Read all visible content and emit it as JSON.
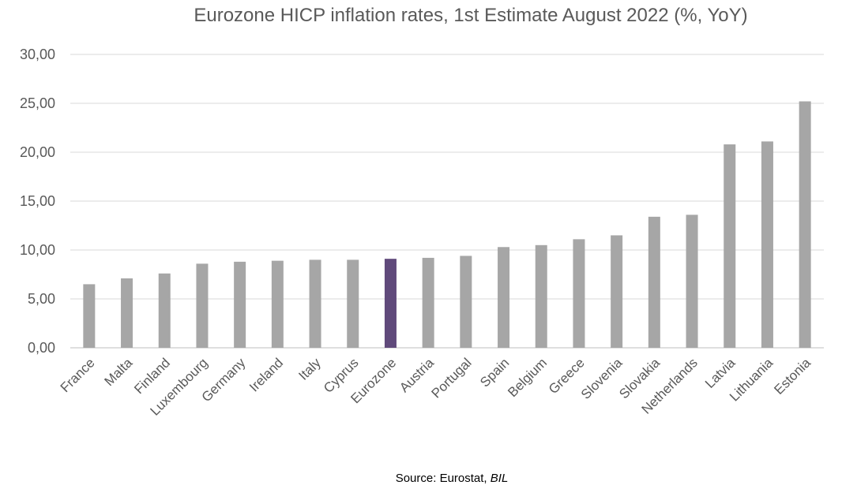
{
  "chart_data": {
    "type": "bar",
    "title": "Eurozone HICP inflation rates, 1st Estimate August 2022 (%, YoY)",
    "xlabel": "",
    "ylabel": "",
    "categories": [
      "France",
      "Malta",
      "Finland",
      "Luxembourg",
      "Germany",
      "Ireland",
      "Italy",
      "Cyprus",
      "Eurozone",
      "Austria",
      "Portugal",
      "Spain",
      "Belgium",
      "Greece",
      "Slovenia",
      "Slovakia",
      "Netherlands",
      "Latvia",
      "Lithuania",
      "Estonia"
    ],
    "values": [
      6.5,
      7.1,
      7.6,
      8.6,
      8.8,
      8.9,
      9.0,
      9.0,
      9.1,
      9.2,
      9.4,
      10.3,
      10.5,
      11.1,
      11.5,
      13.4,
      13.6,
      20.8,
      21.1,
      25.2
    ],
    "ylim": [
      0,
      30
    ],
    "yticks": [
      "0,00",
      "5,00",
      "10,00",
      "15,00",
      "20,00",
      "25,00",
      "30,00"
    ],
    "grid": true,
    "legend": "none",
    "colors": {
      "default": "#a6a6a6",
      "highlight": "#604a7b",
      "highlight_category": "Eurozone",
      "gridline": "#d9d9d9",
      "axis": "#bfbfbf"
    }
  },
  "source": {
    "prefix": "Source: Eurostat, ",
    "italic": "BIL"
  }
}
